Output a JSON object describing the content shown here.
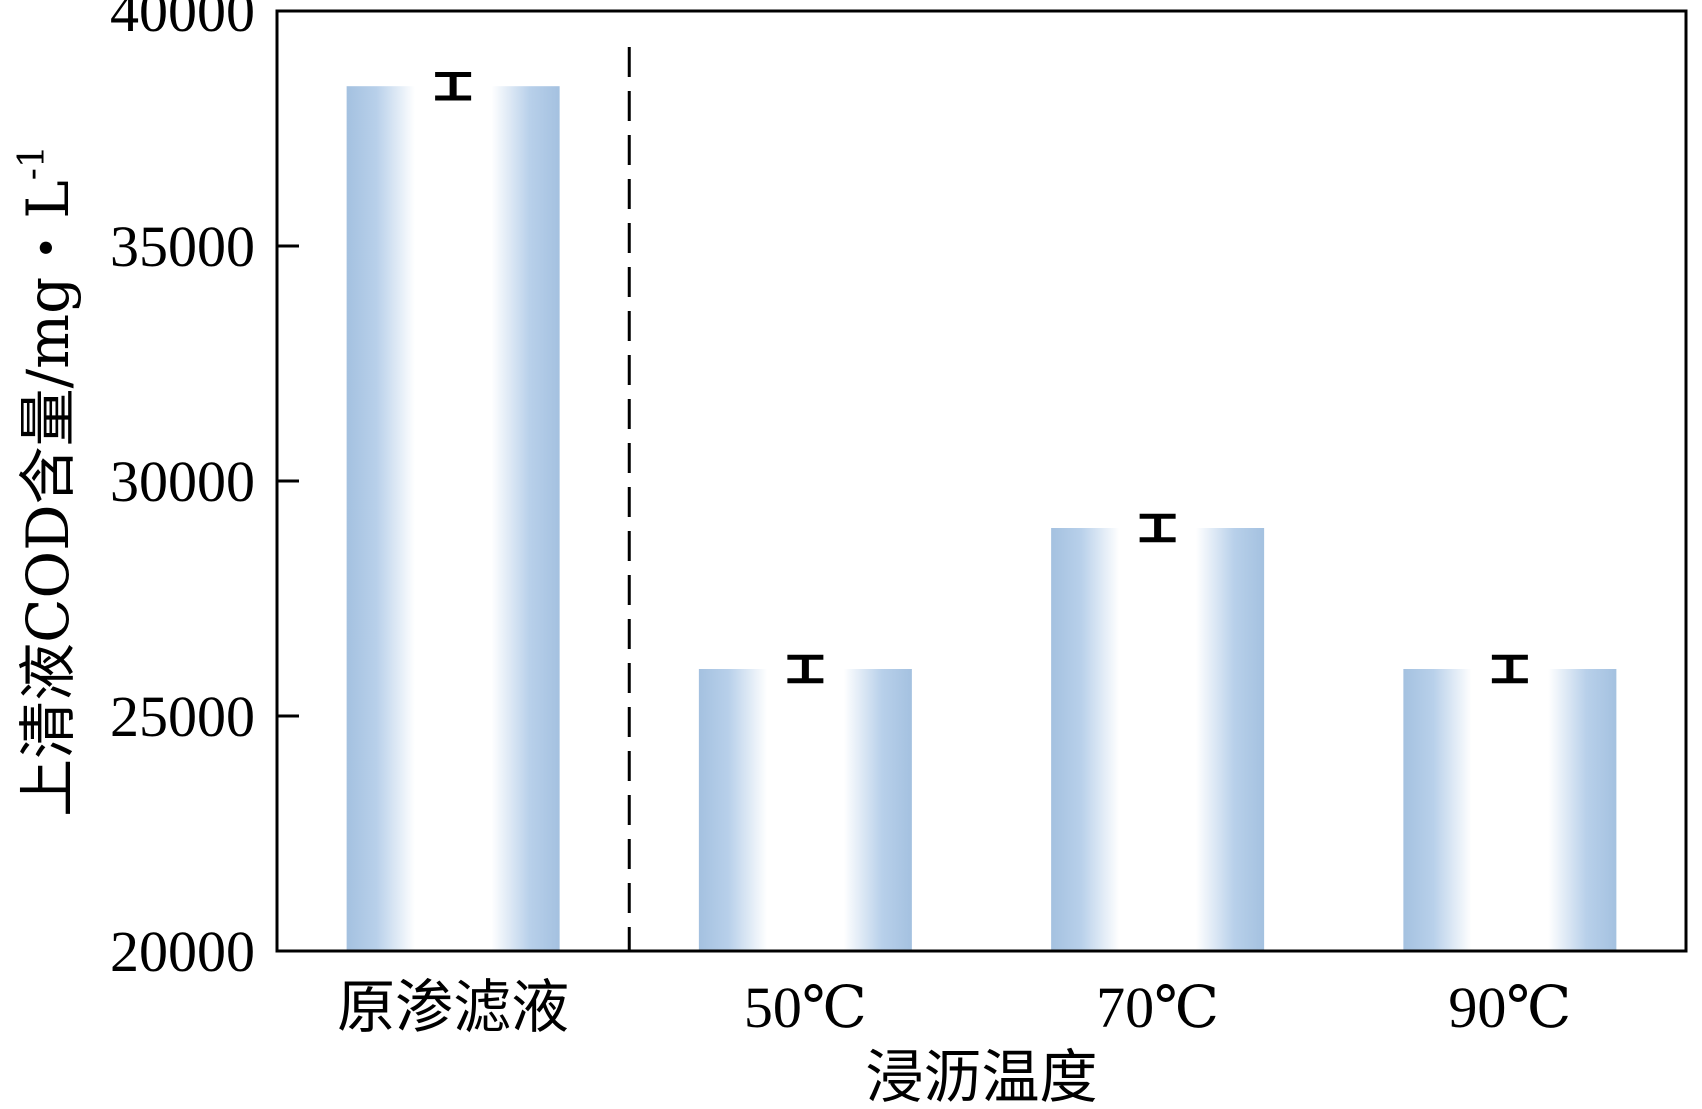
{
  "chart_data": {
    "type": "bar",
    "title": "",
    "xlabel": "浸沥温度",
    "ylabel": "上清液COD含量/mg・L",
    "ylabel_superscript": "-1",
    "categories": [
      "原渗滤液",
      "50℃",
      "70℃",
      "90℃"
    ],
    "values": [
      38400,
      26000,
      29000,
      26000
    ],
    "errors": [
      250,
      250,
      250,
      250
    ],
    "ylim": [
      20000,
      40000
    ],
    "yticks": [
      20000,
      25000,
      30000,
      35000,
      40000
    ],
    "grid": false,
    "legend": "none",
    "separator_after_category": 0,
    "colors": {
      "bar_edge": "#a4c1e0",
      "bar_center": "#ffffff",
      "error_bar": "#000000",
      "separator": "#000000"
    }
  }
}
